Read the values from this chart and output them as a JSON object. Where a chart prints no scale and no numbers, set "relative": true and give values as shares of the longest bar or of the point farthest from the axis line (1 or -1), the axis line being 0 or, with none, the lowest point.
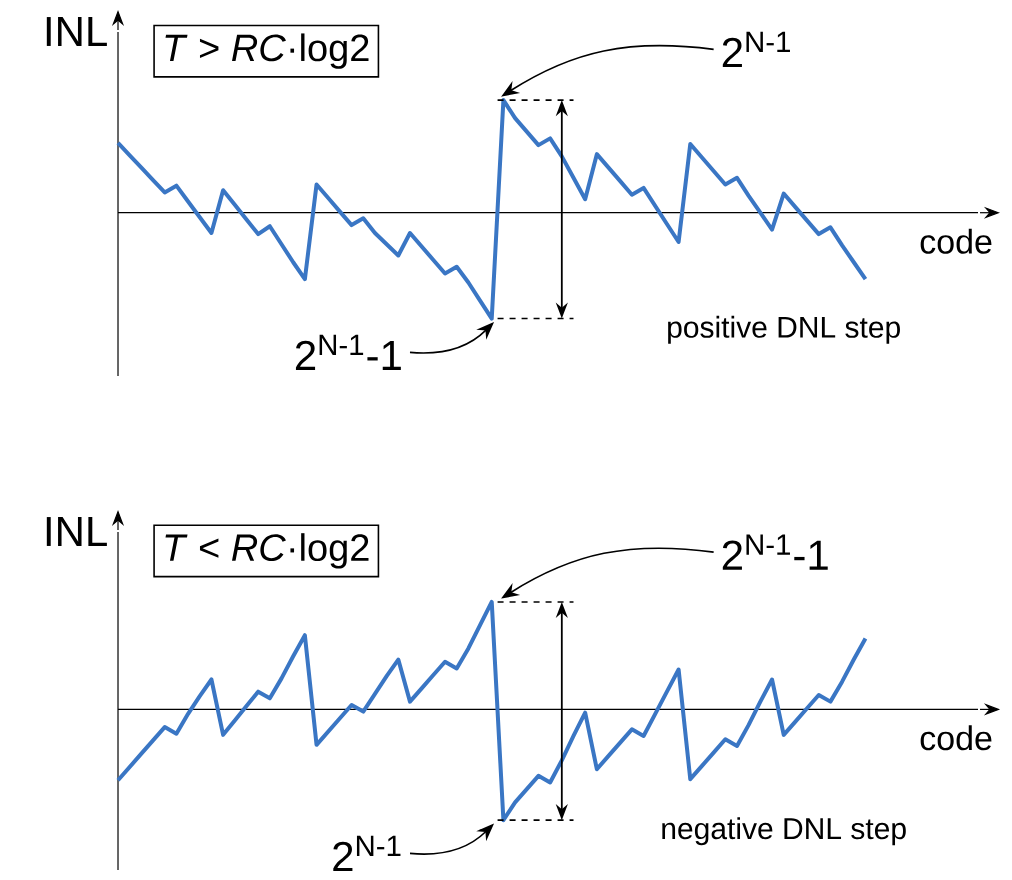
{
  "chart_data": [
    {
      "type": "line",
      "relative": true,
      "ylabel": "INL",
      "xlabel": "code",
      "color": "#3a76c4",
      "categories": [
        null,
        null,
        null,
        null,
        null,
        null,
        null,
        null,
        null,
        null,
        null,
        null,
        null,
        null,
        null,
        null,
        null,
        null,
        null,
        null,
        null,
        null,
        null,
        null,
        null,
        null,
        null,
        null,
        null,
        null,
        null,
        null,
        null,
        null,
        null,
        null,
        null,
        null,
        null,
        null,
        null,
        null,
        null,
        null,
        null,
        null,
        null,
        null,
        null,
        null,
        null,
        null,
        null,
        null,
        null,
        null,
        null,
        null,
        null,
        null,
        null,
        null,
        null,
        null,
        null
      ],
      "values": [
        0.62,
        0.51,
        0.4,
        0.29,
        0.18,
        0.24,
        0.1,
        -0.04,
        -0.18,
        0.2,
        0.07,
        -0.06,
        -0.19,
        -0.12,
        -0.28,
        -0.44,
        -0.59,
        0.25,
        0.13,
        0.01,
        -0.11,
        -0.05,
        -0.18,
        -0.28,
        -0.38,
        -0.18,
        -0.3,
        -0.42,
        -0.54,
        -0.48,
        -0.62,
        -0.78,
        -0.94,
        1.0,
        0.84,
        0.72,
        0.6,
        0.66,
        0.5,
        0.31,
        0.12,
        0.52,
        0.4,
        0.28,
        0.16,
        0.22,
        0.06,
        -0.1,
        -0.26,
        0.61,
        0.49,
        0.37,
        0.25,
        0.31,
        0.15,
        0.0,
        -0.15,
        0.17,
        0.05,
        -0.07,
        -0.19,
        -0.13,
        -0.29,
        -0.44,
        -0.59
      ],
      "annotations": [
        "*T* > *RC*·log2",
        "2$^{N-1}$",
        "2$^{N-1}$-1",
        "positive DNL step"
      ]
    },
    {
      "type": "line",
      "relative": true,
      "ylabel": "INL",
      "xlabel": "code",
      "color": "#3a76c4",
      "categories": [
        null,
        null,
        null,
        null,
        null,
        null,
        null,
        null,
        null,
        null,
        null,
        null,
        null,
        null,
        null,
        null,
        null,
        null,
        null,
        null,
        null,
        null,
        null,
        null,
        null,
        null,
        null,
        null,
        null,
        null,
        null,
        null,
        null,
        null,
        null,
        null,
        null,
        null,
        null,
        null,
        null,
        null,
        null,
        null,
        null,
        null,
        null,
        null,
        null,
        null,
        null,
        null,
        null,
        null,
        null,
        null,
        null,
        null,
        null,
        null,
        null,
        null,
        null,
        null,
        null
      ],
      "values": [
        -0.64,
        -0.52,
        -0.4,
        -0.28,
        -0.16,
        -0.22,
        -0.04,
        0.12,
        0.27,
        -0.23,
        -0.1,
        0.03,
        0.16,
        0.1,
        0.28,
        0.48,
        0.67,
        -0.32,
        -0.2,
        -0.08,
        0.04,
        -0.02,
        0.14,
        0.3,
        0.45,
        0.07,
        0.19,
        0.31,
        0.43,
        0.37,
        0.55,
        0.76,
        0.97,
        -1.0,
        -0.84,
        -0.72,
        -0.6,
        -0.66,
        -0.46,
        -0.24,
        -0.03,
        -0.54,
        -0.42,
        -0.3,
        -0.18,
        -0.24,
        -0.04,
        0.16,
        0.36,
        -0.63,
        -0.51,
        -0.39,
        -0.27,
        -0.33,
        -0.14,
        0.07,
        0.27,
        -0.23,
        -0.11,
        0.01,
        0.13,
        0.07,
        0.25,
        0.45,
        0.64
      ],
      "annotations": [
        "*T* < *RC*·log2",
        "2$^{N-1}$-1",
        "2$^{N-1}$",
        "negative DNL step"
      ]
    }
  ]
}
